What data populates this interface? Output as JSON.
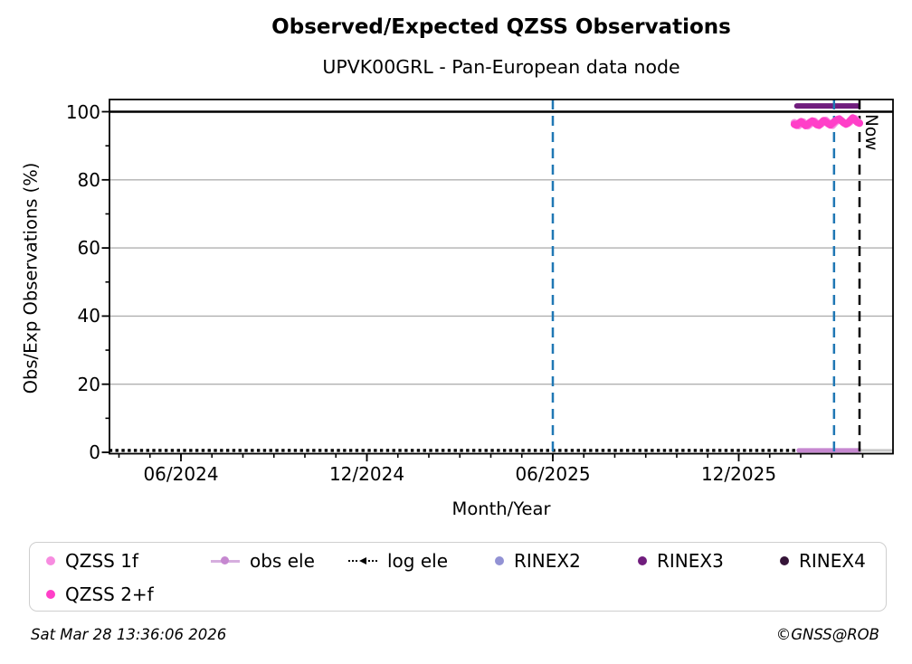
{
  "title": "Observed/Expected QZSS Observations",
  "subtitle": "UPVK00GRL - Pan-European data node",
  "footer": {
    "timestamp": "Sat Mar 28 13:36:06 2026",
    "copyright": "©GNSS@ROB"
  },
  "now_label": "Now",
  "colors": {
    "qzss_1f": "#f78ce0",
    "qzss_2f": "#ff3fc8",
    "obs_ele": "#c688d0",
    "log_ele": "#000000",
    "rinex2": "#9292d4",
    "rinex3": "#701d7d",
    "rinex4": "#351438",
    "event_line_blue": "#1f77b4",
    "now_line": "#000000",
    "grid": "#b0b0b0",
    "post_now_gray": "#c8c8c8"
  },
  "legend": {
    "items": [
      {
        "label": "QZSS 1f",
        "marker": "dot",
        "color_key": "qzss_1f"
      },
      {
        "label": "obs ele",
        "marker": "line-dot",
        "color_key": "obs_ele"
      },
      {
        "label": "log ele",
        "marker": "dotted-tri",
        "color_key": "log_ele"
      },
      {
        "label": "RINEX2",
        "marker": "dot",
        "color_key": "rinex2"
      },
      {
        "label": "RINEX3",
        "marker": "dot",
        "color_key": "rinex3"
      },
      {
        "label": "RINEX4",
        "marker": "dot",
        "color_key": "rinex4"
      },
      {
        "label": "QZSS 2+f",
        "marker": "dot",
        "color_key": "qzss_2f"
      }
    ]
  },
  "chart_data": {
    "type": "scatter",
    "title": "Observed/Expected QZSS Observations",
    "xlabel": "Month/Year",
    "ylabel": "Obs/Exp Observations (%)",
    "ylim": [
      0,
      100
    ],
    "x_range_decimal_years": [
      2024.224,
      2026.331
    ],
    "grid": "horizontal-only",
    "legend_position": "below",
    "x_axis": {
      "major_ticks": [
        {
          "year": 2024.4167,
          "label": "06/2024"
        },
        {
          "year": 2024.9167,
          "label": "12/2024"
        },
        {
          "year": 2025.4167,
          "label": "06/2025"
        },
        {
          "year": 2025.9167,
          "label": "12/2025"
        }
      ],
      "minor_tick_start_year": 2024.25,
      "minor_tick_step_years": 0.083333
    },
    "y_axis": {
      "major_ticks": [
        0,
        20,
        40,
        60,
        80,
        100
      ],
      "minor_ticks": [
        10,
        30,
        50,
        70,
        90
      ],
      "gridline_values": [
        20,
        40,
        60,
        80
      ]
    },
    "hline_100_pct": 100,
    "series": [
      {
        "name": "QZSS 1f",
        "color_key": "qzss_1f",
        "x_start_year": 2026.066,
        "x_end_year": 2026.2415,
        "values_pct": [
          96.8,
          96.4,
          95.9,
          96.5,
          97.0,
          96.4,
          95.8,
          96.3,
          96.9,
          97.2,
          96.6,
          96.1,
          96.4,
          97.0,
          97.5,
          96.9,
          96.3,
          96.0,
          96.7,
          97.3,
          97.8,
          97.4,
          96.8,
          96.3,
          96.6,
          97.1,
          97.8,
          98.0,
          97.2,
          96.7
        ]
      },
      {
        "name": "QZSS 2+f",
        "color_key": "qzss_2f",
        "x_start_year": 2026.066,
        "x_end_year": 2026.2415,
        "values_pct": [
          96.3,
          96.0,
          96.6,
          97.1,
          96.5,
          95.9,
          96.2,
          96.9,
          97.3,
          96.8,
          96.2,
          96.0,
          96.7,
          97.4,
          97.1,
          96.5,
          96.1,
          96.6,
          97.2,
          97.7,
          97.9,
          97.3,
          96.7,
          96.4,
          96.8,
          97.5,
          98.2,
          97.6,
          96.9,
          96.6
        ]
      }
    ],
    "segments": [
      {
        "name": "RINEX3 availability",
        "color_key": "rinex3",
        "x1_year": 2026.073,
        "x2_year": 2026.2366,
        "y_pct": 101.7,
        "width": 6
      },
      {
        "name": "obs ele",
        "color_key": "obs_ele",
        "x1_year": 2026.078,
        "x2_year": 2026.2415,
        "y_pct": 0.55,
        "width": 5
      },
      {
        "name": "post-now baseline",
        "color_key": "post_now_gray",
        "x1_year": 2026.2415,
        "x2_year": 2026.328,
        "y_pct": 0.55,
        "width": 3
      }
    ],
    "log_ele_dotted": {
      "x1_year": 2024.228,
      "x2_year": 2026.2415,
      "y_pct": 0.55
    },
    "vlines": [
      {
        "name": "event-line-1",
        "x_year": 2025.4167,
        "color_key": "event_line_blue",
        "style": "dashed"
      },
      {
        "name": "event-line-2",
        "x_year": 2026.173,
        "color_key": "event_line_blue",
        "style": "dashed"
      },
      {
        "name": "now-line",
        "x_year": 2026.2415,
        "color_key": "now_line",
        "style": "dashed",
        "label": "Now"
      }
    ]
  }
}
